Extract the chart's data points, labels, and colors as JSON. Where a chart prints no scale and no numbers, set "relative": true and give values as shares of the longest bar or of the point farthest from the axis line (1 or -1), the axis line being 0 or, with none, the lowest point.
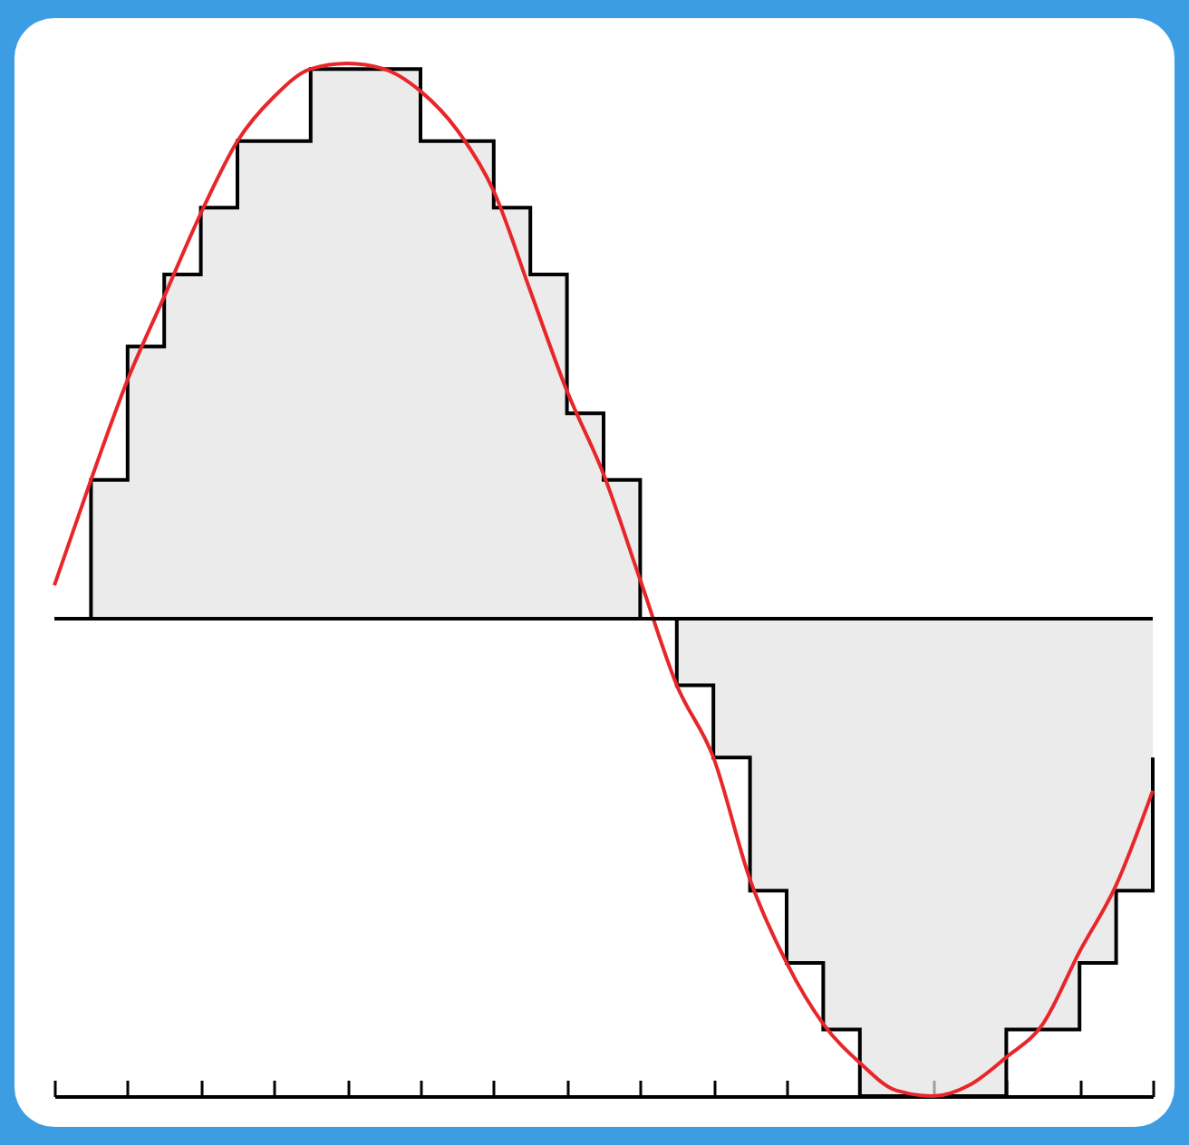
{
  "chart_data": {
    "type": "area",
    "relative": true,
    "tick_labels": false,
    "categories": [
      null,
      null,
      null,
      null,
      null,
      null,
      null,
      null,
      null,
      null,
      null,
      null,
      null,
      null,
      null,
      null,
      null,
      null,
      null,
      null,
      null,
      null,
      null,
      null,
      null,
      null,
      null,
      null,
      null,
      null,
      null
    ],
    "series": [
      {
        "color": "#e2e2e2",
        "values": [
          0,
          0.25,
          0.49,
          0.62,
          0.74,
          0.86,
          0.86,
          0.99,
          0.99,
          0.99,
          0.86,
          0.86,
          0.74,
          0.62,
          0.37,
          0.25,
          0,
          -0.12,
          -0.25,
          -0.49,
          -0.62,
          -0.74,
          -0.86,
          -0.86,
          -0.86,
          -0.86,
          -0.74,
          -0.74,
          -0.62,
          -0.49,
          -0.25
        ]
      },
      {
        "type": "line",
        "color": "#e8262a",
        "values": [
          0.06,
          0.25,
          0.43,
          0.58,
          0.73,
          0.86,
          0.94,
          0.99,
          1,
          0.99,
          0.95,
          0.88,
          0.77,
          0.59,
          0.41,
          0.26,
          0.07,
          -0.12,
          -0.25,
          -0.47,
          -0.62,
          -0.73,
          -0.8,
          -0.85,
          -0.86,
          -0.84,
          -0.79,
          -0.73,
          -0.6,
          -0.48,
          -0.31
        ]
      }
    ]
  }
}
